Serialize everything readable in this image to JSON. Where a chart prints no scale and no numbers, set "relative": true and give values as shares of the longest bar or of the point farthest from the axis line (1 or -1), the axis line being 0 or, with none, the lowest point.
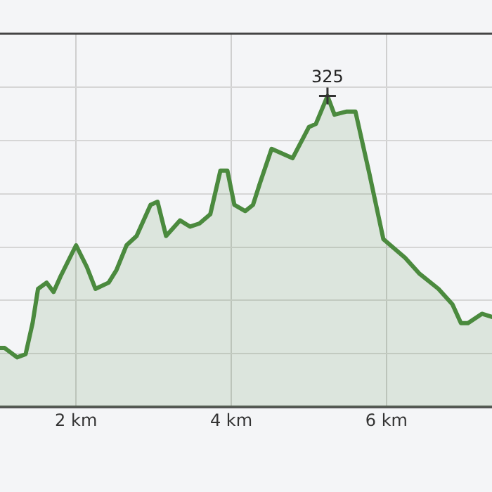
{
  "chart_data": {
    "type": "area",
    "relative": true,
    "grid": true,
    "xlim": [
      1.02,
      7.36
    ],
    "xticks": [
      {
        "value": 2,
        "label": "2 km"
      },
      {
        "value": 4,
        "label": "4 km"
      },
      {
        "value": 6,
        "label": "6 km"
      }
    ],
    "x": [
      1.02,
      1.08,
      1.24,
      1.35,
      1.44,
      1.51,
      1.62,
      1.71,
      1.8,
      2.0,
      2.14,
      2.25,
      2.42,
      2.52,
      2.65,
      2.78,
      2.96,
      3.05,
      3.16,
      3.34,
      3.47,
      3.59,
      3.73,
      3.86,
      3.95,
      4.04,
      4.18,
      4.28,
      4.37,
      4.52,
      4.79,
      5.0,
      5.09,
      5.24,
      5.33,
      5.49,
      5.6,
      5.78,
      5.96,
      6.24,
      6.42,
      6.67,
      6.85,
      6.96,
      7.05,
      7.23,
      7.36
    ],
    "series": [
      {
        "color": "#4b8a3e",
        "values": [
          0.19,
          0.19,
          0.16,
          0.17,
          0.27,
          0.38,
          0.4,
          0.37,
          0.42,
          0.52,
          0.45,
          0.38,
          0.4,
          0.44,
          0.52,
          0.55,
          0.65,
          0.66,
          0.55,
          0.6,
          0.58,
          0.59,
          0.62,
          0.76,
          0.76,
          0.65,
          0.63,
          0.65,
          0.72,
          0.83,
          0.8,
          0.9,
          0.91,
          1,
          0.94,
          0.95,
          0.95,
          0.75,
          0.54,
          0.48,
          0.43,
          0.38,
          0.33,
          0.27,
          0.27,
          0.3,
          0.29
        ]
      }
    ],
    "annotations": [
      {
        "text": "325",
        "x": 5.24,
        "y": 1
      }
    ]
  }
}
